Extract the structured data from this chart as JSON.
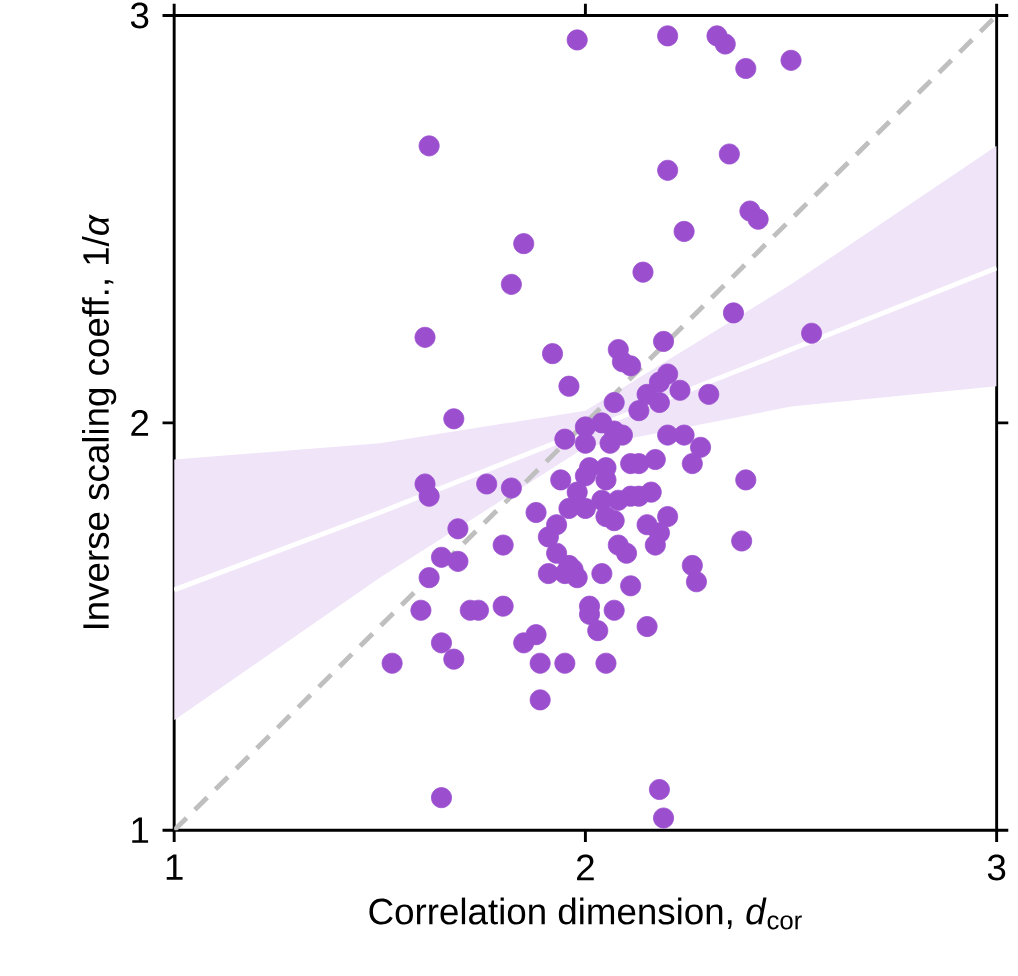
{
  "chart_data": {
    "type": "scatter",
    "xlabel": "Correlation dimension, *d*$_{cor}$",
    "ylabel": "Inverse scaling coeff., 1/*α*",
    "xlim": [
      1,
      3
    ],
    "ylim": [
      1,
      3
    ],
    "xticks": [
      1,
      2,
      3
    ],
    "yticks": [
      1,
      2,
      3
    ],
    "grid": false,
    "marker": "circle",
    "series": [
      {
        "type": "line",
        "color": "#ffffff",
        "marker": "none",
        "line_style": "solid",
        "x": [
          1,
          1.5,
          2,
          2.5,
          3
        ],
        "values": [
          1.59,
          1.78,
          1.98,
          2.18,
          2.38
        ],
        "lower": [
          1.27,
          1.62,
          1.94,
          2.04,
          2.09
        ],
        "upper": [
          1.91,
          1.95,
          2.03,
          2.34,
          2.68
        ]
      },
      {
        "type": "line",
        "color": "#bfbfbf",
        "marker": "none",
        "line_style": "dashed",
        "x": [
          1,
          3
        ],
        "values": [
          1,
          3
        ]
      },
      {
        "color": "#9b4fcf",
        "x": [
          1.98,
          2.2,
          2.32,
          2.34,
          2.39,
          2.5,
          1.62,
          2.2,
          2.35,
          2.4,
          2.42,
          1.85,
          2.24,
          1.82,
          2.14,
          2.36,
          2.55,
          1.61,
          1.92,
          2.08,
          2.09,
          2.11,
          2.19,
          1.96,
          1.68,
          2.2,
          2.18,
          2.23,
          2.3,
          2.07,
          2.15,
          2.13,
          2.18,
          2.0,
          1.95,
          2.0,
          2.04,
          2.07,
          2.09,
          2.06,
          2.2,
          2.24,
          2.28,
          2.26,
          2.17,
          2.11,
          2.13,
          2.01,
          2.05,
          2.0,
          1.94,
          2.05,
          2.39,
          1.61,
          1.62,
          1.76,
          1.82,
          2.16,
          2.11,
          2.08,
          2.13,
          1.98,
          2.04,
          2.0,
          1.96,
          1.88,
          2.05,
          2.07,
          2.2,
          2.15,
          2.18,
          2.17,
          1.69,
          1.93,
          1.91,
          1.8,
          2.08,
          2.1,
          2.38,
          1.93,
          1.65,
          1.69,
          1.62,
          1.96,
          1.97,
          1.91,
          1.95,
          1.98,
          2.04,
          2.26,
          2.27,
          2.11,
          2.01,
          2.01,
          2.07,
          1.8,
          1.72,
          1.74,
          1.6,
          2.03,
          2.15,
          1.88,
          1.85,
          1.65,
          1.53,
          1.68,
          1.89,
          1.95,
          2.05,
          1.89,
          1.65,
          2.18,
          2.19
        ],
        "values": [
          2.94,
          2.95,
          2.95,
          2.93,
          2.87,
          2.89,
          2.68,
          2.62,
          2.66,
          2.52,
          2.5,
          2.44,
          2.47,
          2.34,
          2.37,
          2.27,
          2.22,
          2.21,
          2.17,
          2.18,
          2.15,
          2.14,
          2.2,
          2.09,
          2.01,
          2.12,
          2.1,
          2.08,
          2.07,
          2.05,
          2.07,
          2.03,
          2.05,
          1.99,
          1.96,
          1.95,
          2.0,
          1.98,
          1.97,
          1.95,
          1.97,
          1.97,
          1.94,
          1.9,
          1.91,
          1.9,
          1.9,
          1.89,
          1.89,
          1.87,
          1.86,
          1.86,
          1.86,
          1.85,
          1.82,
          1.85,
          1.84,
          1.83,
          1.82,
          1.81,
          1.82,
          1.83,
          1.81,
          1.79,
          1.79,
          1.78,
          1.77,
          1.76,
          1.77,
          1.75,
          1.73,
          1.7,
          1.74,
          1.75,
          1.72,
          1.7,
          1.7,
          1.68,
          1.71,
          1.68,
          1.67,
          1.66,
          1.62,
          1.65,
          1.64,
          1.63,
          1.63,
          1.62,
          1.63,
          1.65,
          1.61,
          1.6,
          1.55,
          1.53,
          1.54,
          1.55,
          1.54,
          1.54,
          1.54,
          1.49,
          1.5,
          1.48,
          1.46,
          1.46,
          1.41,
          1.42,
          1.41,
          1.41,
          1.41,
          1.32,
          1.08,
          1.1,
          1.03
        ]
      }
    ]
  }
}
